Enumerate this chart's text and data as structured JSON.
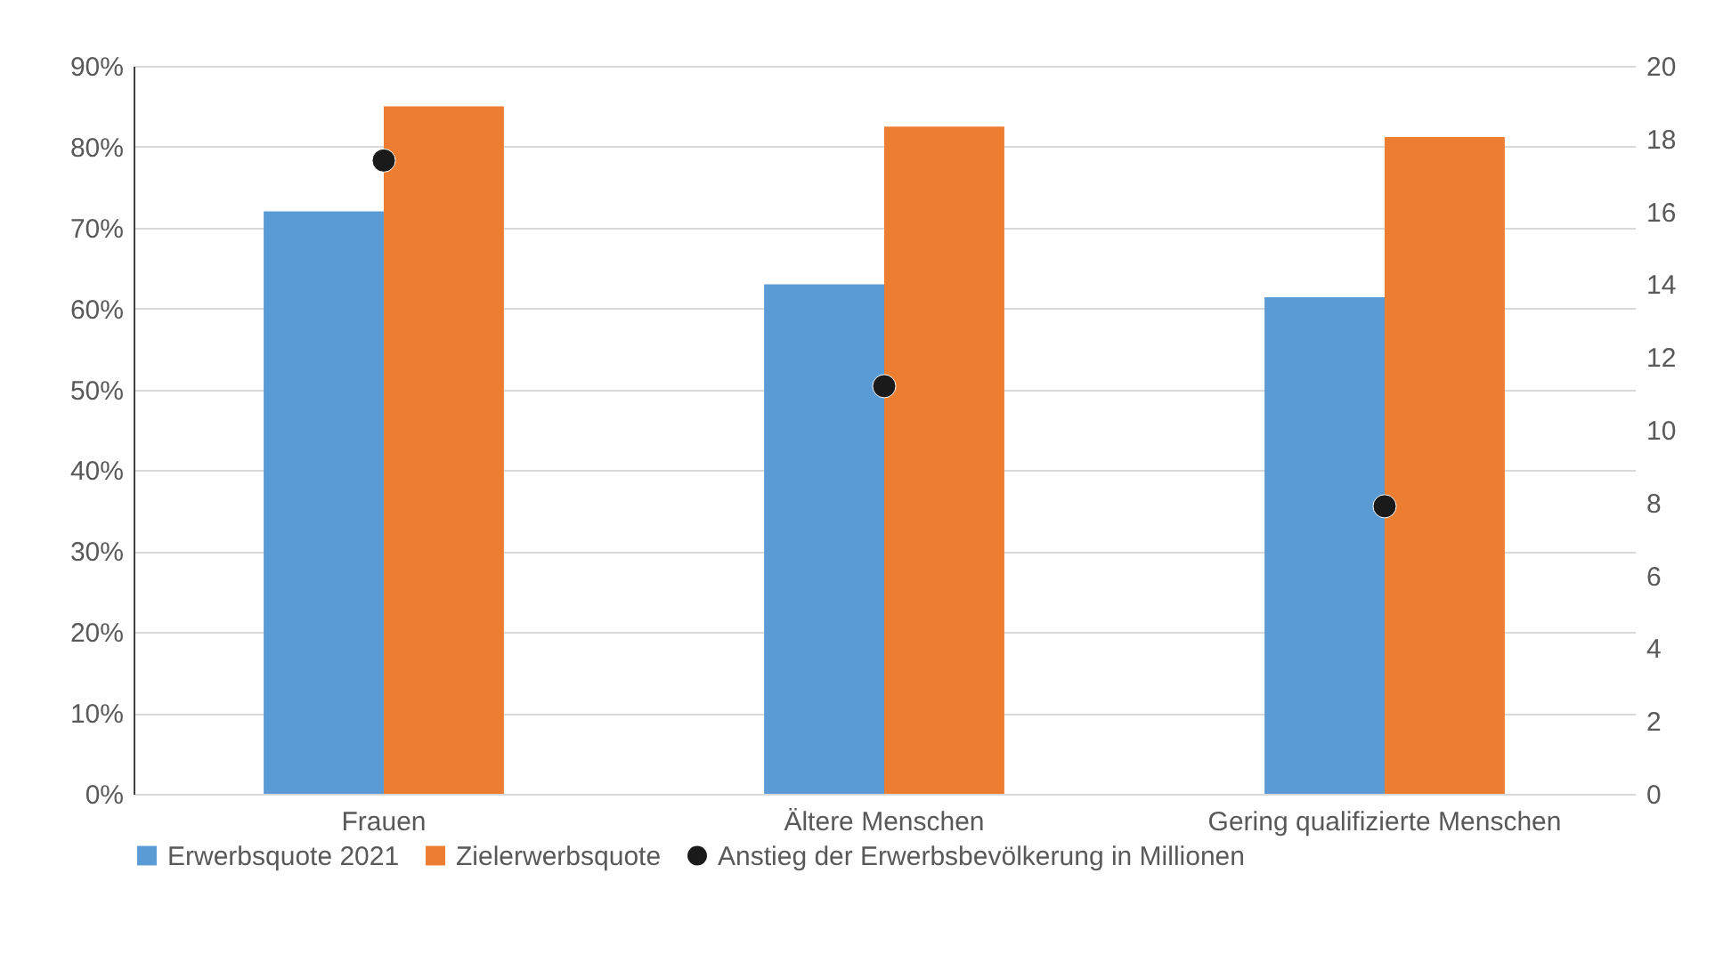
{
  "chart_data": {
    "type": "bar",
    "categories": [
      "Frauen",
      "Ältere Menschen",
      "Gering qualifizierte Menschen"
    ],
    "series": [
      {
        "name": "Erwerbsquote 2021",
        "color": "#5b9bd5",
        "values": [
          72,
          63,
          61.4
        ]
      },
      {
        "name": "Zielerwerbsquote",
        "color": "#ed7d31",
        "values": [
          85,
          82.5,
          81.2
        ]
      },
      {
        "name": "Anstieg der Erwerbsbevölkerung in Millionen",
        "color": "#1a1a1a",
        "type": "scatter",
        "axis": "y2",
        "values": [
          17.4,
          11.2,
          7.9
        ]
      }
    ],
    "ylim": [
      0,
      90
    ],
    "yticks": [
      {
        "value": 0,
        "label": "0%"
      },
      {
        "value": 10,
        "label": "10%"
      },
      {
        "value": 20,
        "label": "20%"
      },
      {
        "value": 30,
        "label": "30%"
      },
      {
        "value": 40,
        "label": "40%"
      },
      {
        "value": 50,
        "label": "50%"
      },
      {
        "value": 60,
        "label": "60%"
      },
      {
        "value": 70,
        "label": "70%"
      },
      {
        "value": 80,
        "label": "80%"
      },
      {
        "value": 90,
        "label": "90%"
      }
    ],
    "y2lim": [
      0,
      20
    ],
    "y2ticks": [
      0,
      2,
      4,
      6,
      8,
      10,
      12,
      14,
      16,
      18,
      20
    ],
    "grid": "y",
    "legend": "bottom",
    "marker": "circle"
  }
}
